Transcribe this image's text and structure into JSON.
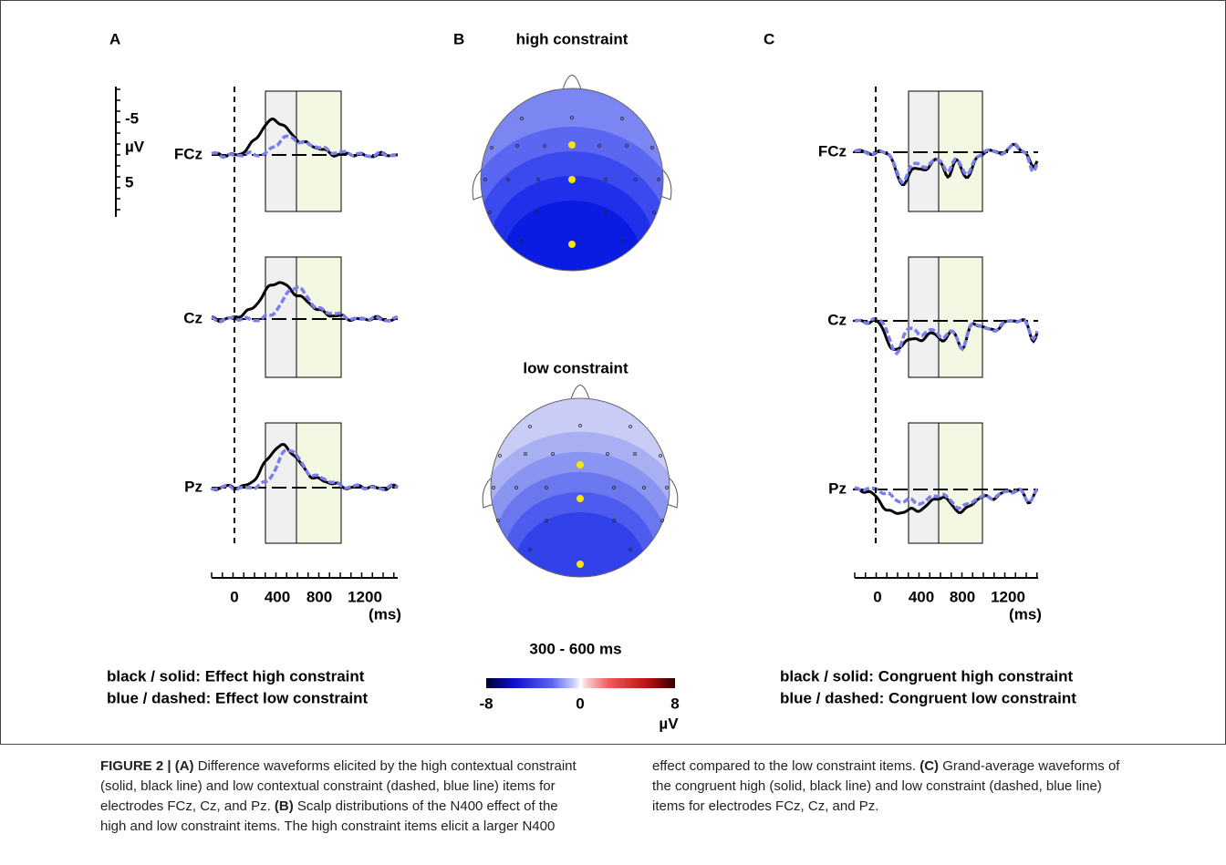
{
  "panels": {
    "A": {
      "label": "A",
      "y_axis": {
        "ticks": [
          "-5",
          "5"
        ],
        "unit": "µV"
      },
      "electrodes": [
        "FCz",
        "Cz",
        "Pz"
      ],
      "x_axis": {
        "ticks": [
          "0",
          "400",
          "800",
          "1200"
        ],
        "unit": "(ms)"
      },
      "legend": [
        "black / solid: Effect high constraint",
        "blue / dashed: Effect low constraint"
      ]
    },
    "B": {
      "label": "B",
      "maps": [
        "high constraint",
        "low constraint"
      ],
      "window": "300 - 600 ms",
      "colorbar": {
        "ticks": [
          "-8",
          "0",
          "8"
        ],
        "unit": "µV"
      }
    },
    "C": {
      "label": "C",
      "electrodes": [
        "FCz",
        "Cz",
        "Pz"
      ],
      "x_axis": {
        "ticks": [
          "0",
          "400",
          "800",
          "1200"
        ],
        "unit": "(ms)"
      },
      "legend": [
        "black / solid: Congruent high constraint",
        "blue / dashed: Congruent low constraint"
      ]
    }
  },
  "caption": {
    "lead": "FIGURE 2 |",
    "parts": [
      {
        "tag": "(A)",
        "text": "Difference waveforms elicited by the high contextual constraint (solid, black line) and low contextual constraint (dashed, blue line) items for electrodes FCz, Cz, and Pz."
      },
      {
        "tag": "(B)",
        "text": "Scalp distributions of the N400 effect of the high and low constraint items. The high constraint items elicit a larger N400 effect compared to the low constraint items."
      },
      {
        "tag": "(C)",
        "text": "Grand-average waveforms of the congruent high (solid, black line) and low constraint (dashed, blue line) items for electrodes FCz, Cz, and Pz."
      }
    ]
  }
}
